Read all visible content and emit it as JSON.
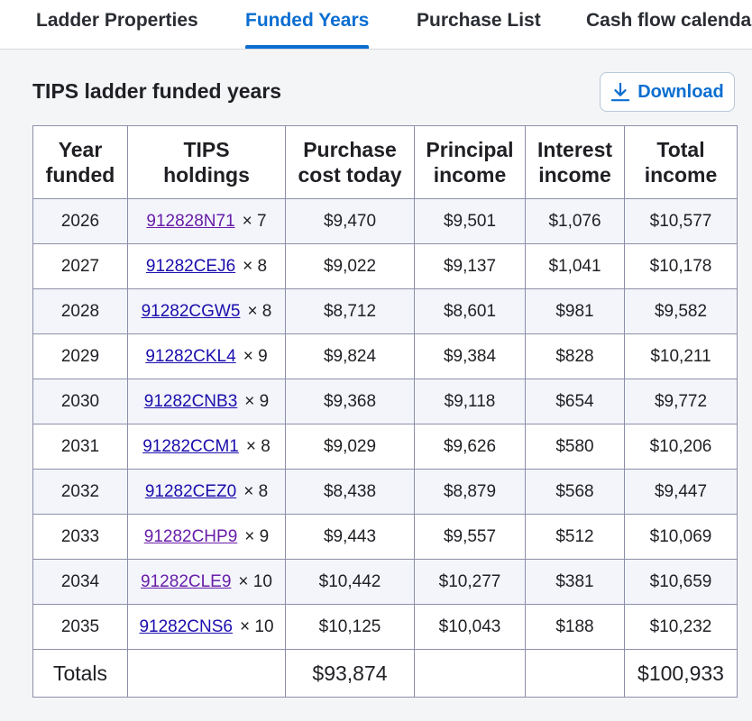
{
  "tabs": [
    {
      "label": "Ladder Properties"
    },
    {
      "label": "Funded Years"
    },
    {
      "label": "Purchase List"
    },
    {
      "label": "Cash flow calendar"
    }
  ],
  "section": {
    "title": "TIPS ladder funded years",
    "download_label": "Download"
  },
  "table": {
    "headers": {
      "year_line1": "Year",
      "year_line2": "funded",
      "tips_line1": "TIPS",
      "tips_line2": "holdings",
      "cost_line1": "Purchase",
      "cost_line2": "cost today",
      "principal_line1": "Principal",
      "principal_line2": "income",
      "interest_line1": "Interest",
      "interest_line2": "income",
      "total_line1": "Total",
      "total_line2": "income"
    },
    "rows": [
      {
        "year": "2026",
        "cusip": "912828N71",
        "qty": "× 7",
        "cost": "$9,470",
        "principal": "$9,501",
        "interest": "$1,076",
        "total": "$10,577"
      },
      {
        "year": "2027",
        "cusip": "91282CEJ6",
        "qty": "× 8",
        "cost": "$9,022",
        "principal": "$9,137",
        "interest": "$1,041",
        "total": "$10,178"
      },
      {
        "year": "2028",
        "cusip": "91282CGW5",
        "qty": "× 8",
        "cost": "$8,712",
        "principal": "$8,601",
        "interest": "$981",
        "total": "$9,582"
      },
      {
        "year": "2029",
        "cusip": "91282CKL4",
        "qty": "× 9",
        "cost": "$9,824",
        "principal": "$9,384",
        "interest": "$828",
        "total": "$10,211"
      },
      {
        "year": "2030",
        "cusip": "91282CNB3",
        "qty": "× 9",
        "cost": "$9,368",
        "principal": "$9,118",
        "interest": "$654",
        "total": "$9,772"
      },
      {
        "year": "2031",
        "cusip": "91282CCM1",
        "qty": "× 8",
        "cost": "$9,029",
        "principal": "$9,626",
        "interest": "$580",
        "total": "$10,206"
      },
      {
        "year": "2032",
        "cusip": "91282CEZ0",
        "qty": "× 8",
        "cost": "$8,438",
        "principal": "$8,879",
        "interest": "$568",
        "total": "$9,447"
      },
      {
        "year": "2033",
        "cusip": "91282CHP9",
        "qty": "× 9",
        "cost": "$9,443",
        "principal": "$9,557",
        "interest": "$512",
        "total": "$10,069"
      },
      {
        "year": "2034",
        "cusip": "91282CLE9",
        "qty": "× 10",
        "cost": "$10,442",
        "principal": "$10,277",
        "interest": "$381",
        "total": "$10,659"
      },
      {
        "year": "2035",
        "cusip": "91282CNS6",
        "qty": "× 10",
        "cost": "$10,125",
        "principal": "$10,043",
        "interest": "$188",
        "total": "$10,232"
      }
    ],
    "totals": {
      "label": "Totals",
      "cost": "$93,874",
      "total": "$100,933"
    }
  },
  "colors": {
    "accent": "#0a6ed1",
    "link": "#1a0dab",
    "link_visited": "#681da8",
    "row_stripe": "#f3f5fb",
    "border": "#8c8fa8"
  },
  "icons": {
    "download": "download-icon"
  }
}
